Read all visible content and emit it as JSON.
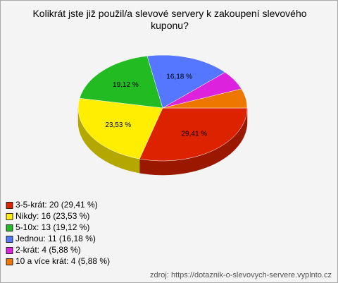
{
  "chart_data": {
    "type": "pie",
    "title": "Kolikrát jste již použil/a slevové servery k zakoupení slevového kuponu?",
    "categories": [
      "3-5-krát: 20 (29,41 %)",
      "Nikdy: 16 (23,53 %)",
      "5-10x: 13 (19,12 %)",
      "Jednou: 11 (16,18 %)",
      "2-krát: 4 (5,88 %)",
      "10 a více krát: 4 (5,88 %)"
    ],
    "values": [
      29.41,
      23.53,
      19.12,
      16.18,
      5.88,
      5.88
    ],
    "value_labels": [
      "29,41 %",
      "23,53 %",
      "19,12 %",
      "16,18 %",
      null,
      null
    ],
    "colors": [
      "#dd2200",
      "#ffee00",
      "#22bb22",
      "#5577ff",
      "#dd22dd",
      "#ee7700"
    ],
    "source": "zdroj: https://dotaznik-o-slevovych-servere.vyplnto.cz"
  }
}
